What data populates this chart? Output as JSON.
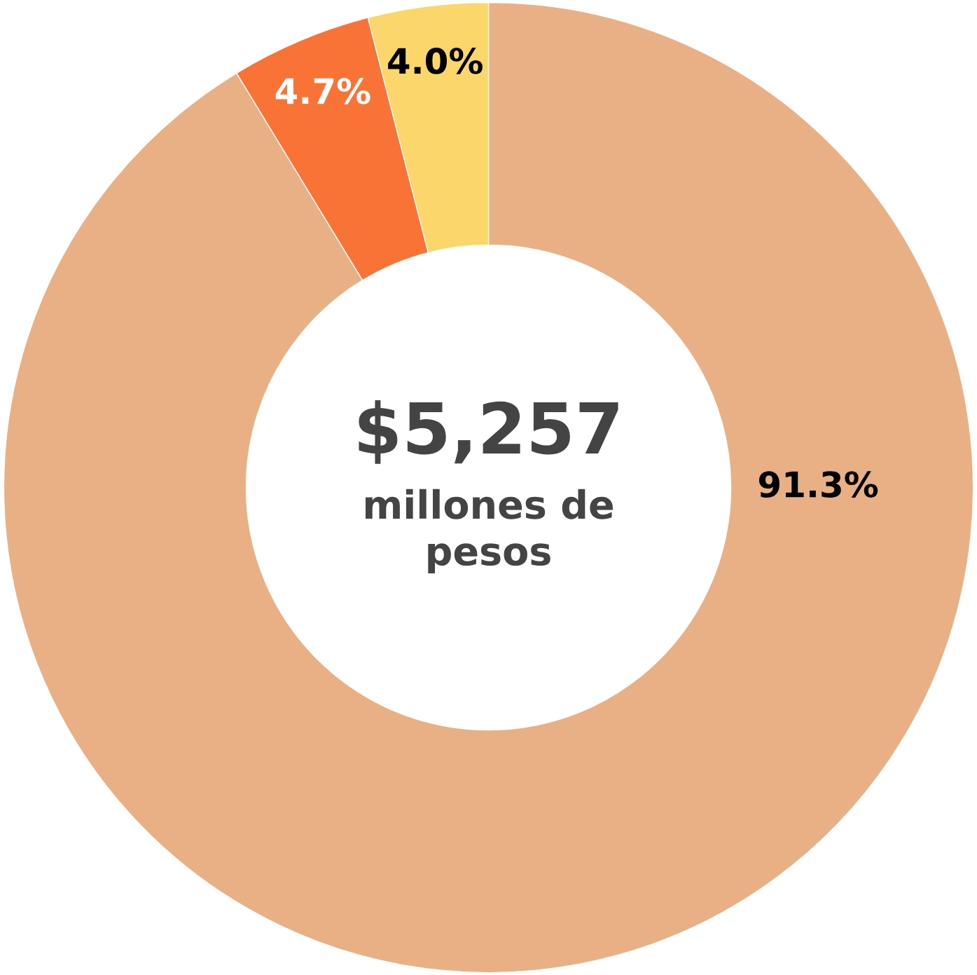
{
  "chart_data": {
    "type": "donut",
    "categories": [
      null,
      null,
      null
    ],
    "values": [
      91.3,
      4.7,
      4.0
    ],
    "colors": [
      "#e8b084",
      "#f97236",
      "#fbd66a"
    ],
    "data_labels": true,
    "value_labels": [
      "91.3%",
      "4.7%",
      "4.0%"
    ],
    "annotations": [
      "$5,257",
      "millones de\npesos"
    ]
  }
}
